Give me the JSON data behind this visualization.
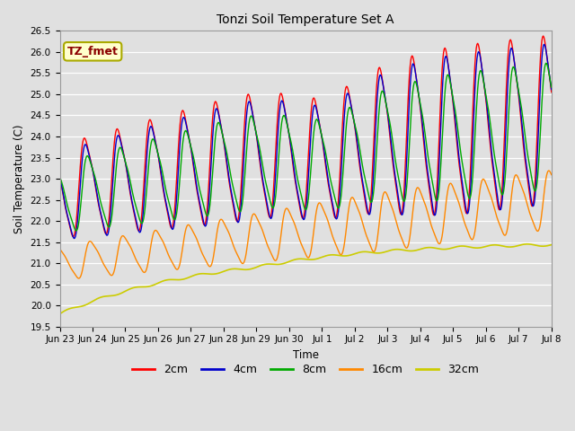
{
  "title": "Tonzi Soil Temperature Set A",
  "xlabel": "Time",
  "ylabel": "Soil Temperature (C)",
  "ylim": [
    19.5,
    26.5
  ],
  "annotation": "TZ_fmet",
  "annotation_color": "#8B0000",
  "annotation_bg": "#FFFFCC",
  "annotation_edge": "#AAAA00",
  "bg_color": "#E0E0E0",
  "grid_color": "#FFFFFF",
  "line_colors": {
    "2cm": "#FF0000",
    "4cm": "#0000CC",
    "8cm": "#00AA00",
    "16cm": "#FF8800",
    "32cm": "#CCCC00"
  },
  "xtick_labels": [
    "Jun 23",
    "Jun 24",
    "Jun 25",
    "Jun 26",
    "Jun 27",
    "Jun 28",
    "Jun 29",
    "Jun 30",
    "Jul 1",
    "Jul 2",
    "Jul 3",
    "Jul 4",
    "Jul 5",
    "Jul 6",
    "Jul 7",
    "Jul 8"
  ],
  "yticks": [
    19.5,
    20.0,
    20.5,
    21.0,
    21.5,
    22.0,
    22.5,
    23.0,
    23.5,
    24.0,
    24.5,
    25.0,
    25.5,
    26.0,
    26.5
  ]
}
